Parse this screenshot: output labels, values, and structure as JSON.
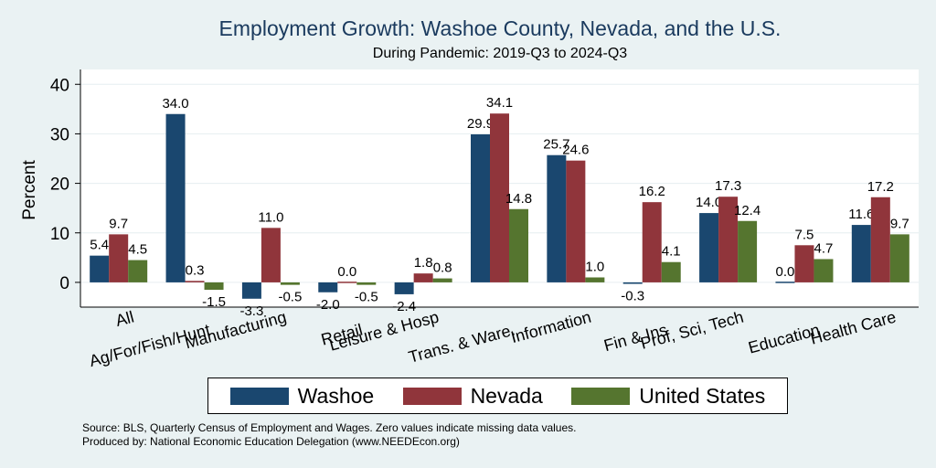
{
  "chart_data": {
    "type": "bar",
    "title": "Employment Growth: Washoe County, Nevada, and the U.S.",
    "subtitle": "During Pandemic: 2019-Q3 to 2024-Q3",
    "ylabel": "Percent",
    "xlabel": "",
    "ylim": [
      -5,
      43
    ],
    "yticks": [
      0,
      10,
      20,
      30,
      40
    ],
    "grid": true,
    "legend_position": "bottom",
    "categories": [
      "All",
      "Ag/For/Fish/Hunt",
      "Manufacturing",
      "Retail",
      "Leisure & Hosp",
      "Trans. & Ware.",
      "Information",
      "Fin & Ins",
      "Prof, Sci, Tech",
      "Education",
      "Health Care"
    ],
    "series": [
      {
        "name": "Washoe",
        "color": "#1a476f",
        "values": [
          5.4,
          34.0,
          -3.3,
          -2.0,
          -2.4,
          29.9,
          25.7,
          -0.3,
          14.0,
          0.0,
          11.6
        ],
        "labels": [
          "5.4",
          "34.0",
          "-3.3",
          "-2.0",
          "-2.4",
          "29.9",
          "25.7",
          "-0.3",
          "14.0",
          "0.0",
          "11.6"
        ]
      },
      {
        "name": "Nevada",
        "color": "#90353b",
        "values": [
          9.7,
          0.3,
          11.0,
          0.0,
          1.8,
          34.1,
          24.6,
          16.2,
          17.3,
          7.5,
          17.2
        ],
        "labels": [
          "9.7",
          "0.3",
          "11.0",
          "0.0",
          "1.8",
          "34.1",
          "24.6",
          "16.2",
          "17.3",
          "7.5",
          "17.2"
        ]
      },
      {
        "name": "United States",
        "color": "#55752f",
        "values": [
          4.5,
          -1.5,
          -0.5,
          -0.5,
          0.8,
          14.8,
          1.0,
          4.1,
          12.4,
          4.7,
          9.7
        ],
        "labels": [
          "4.5",
          "-1.5",
          "-0.5",
          "-0.5",
          "0.8",
          "14.8",
          "1.0",
          "4.1",
          "12.4",
          "4.7",
          "9.7"
        ]
      }
    ]
  },
  "notes": {
    "source": "Source: BLS, Quarterly Census of Employment and Wages. Zero values indicate missing data values.",
    "produced": "Produced by: National Economic Education Delegation (www.NEEDEcon.org)"
  }
}
